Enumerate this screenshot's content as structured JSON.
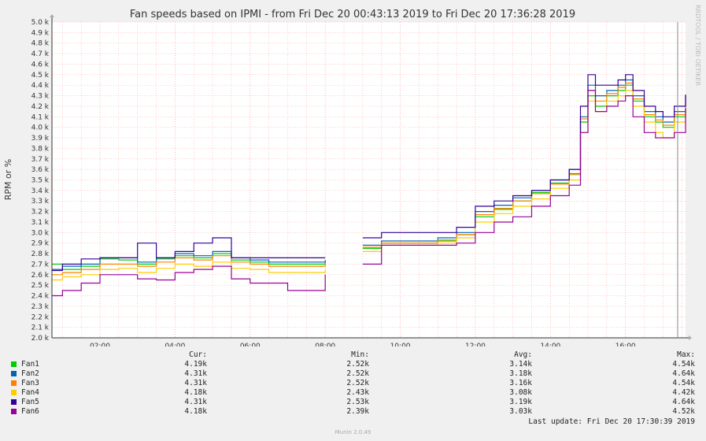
{
  "chart_data": {
    "type": "line",
    "title": "Fan speeds based on IPMI - from Fri Dec 20 00:43:13 2019 to Fri Dec 20 17:36:28 2019",
    "ylabel": "RPM or %",
    "ylim": [
      2000,
      5000
    ],
    "x_range_hours": [
      0.72,
      17.6
    ],
    "x_ticks": [
      "02:00",
      "04:00",
      "06:00",
      "08:00",
      "10:00",
      "12:00",
      "14:00",
      "16:00"
    ],
    "y_ticks": [
      "5.0 k",
      "4.9 k",
      "4.8 k",
      "4.7 k",
      "4.6 k",
      "4.5 k",
      "4.4 k",
      "4.3 k",
      "4.2 k",
      "4.1 k",
      "4.0 k",
      "3.9 k",
      "3.8 k",
      "3.7 k",
      "3.6 k",
      "3.5 k",
      "3.4 k",
      "3.3 k",
      "3.2 k",
      "3.1 k",
      "3.0 k",
      "2.9 k",
      "2.8 k",
      "2.7 k",
      "2.6 k",
      "2.5 k",
      "2.4 k",
      "2.3 k",
      "2.2 k",
      "2.1 k",
      "2.0 k"
    ],
    "grid": true,
    "legend_placement": "bottom",
    "series": [
      {
        "name": "Fan1",
        "color": "#00cc00",
        "cur": "4.19k",
        "min": "2.52k",
        "avg": "3.14k",
        "max": "4.54k",
        "x": [
          0.72,
          1.0,
          1.5,
          2.0,
          2.5,
          3.0,
          3.5,
          4.0,
          4.5,
          5.0,
          5.5,
          6.0,
          6.5,
          7.0,
          7.5,
          8.0,
          8.6,
          9.0,
          9.5,
          10.0,
          10.5,
          11.0,
          11.5,
          12.0,
          12.5,
          13.0,
          13.5,
          14.0,
          14.5,
          14.8,
          15.0,
          15.2,
          15.5,
          15.8,
          16.0,
          16.2,
          16.5,
          16.8,
          17.0,
          17.3,
          17.6
        ],
        "y": [
          2700,
          2650,
          2680,
          2750,
          2740,
          2700,
          2750,
          2780,
          2760,
          2800,
          2740,
          2720,
          2700,
          2700,
          2700,
          2720,
          null,
          2850,
          2900,
          2900,
          2900,
          2920,
          2980,
          3150,
          3220,
          3300,
          3380,
          3470,
          3560,
          4050,
          4300,
          4200,
          4300,
          4350,
          4400,
          4250,
          4100,
          4050,
          4000,
          4100,
          4190
        ]
      },
      {
        "name": "Fan2",
        "color": "#0066b3",
        "cur": "4.31k",
        "min": "2.52k",
        "avg": "3.18k",
        "max": "4.64k",
        "x": [
          0.72,
          1.0,
          1.5,
          2.0,
          2.5,
          3.0,
          3.5,
          4.0,
          4.5,
          5.0,
          5.5,
          6.0,
          6.5,
          7.0,
          7.5,
          8.0,
          8.6,
          9.0,
          9.5,
          10.0,
          10.5,
          11.0,
          11.5,
          12.0,
          12.5,
          13.0,
          13.5,
          14.0,
          14.5,
          14.8,
          15.0,
          15.2,
          15.5,
          15.8,
          16.0,
          16.2,
          16.5,
          16.8,
          17.0,
          17.3,
          17.6
        ],
        "y": [
          2650,
          2680,
          2700,
          2760,
          2760,
          2720,
          2760,
          2800,
          2780,
          2820,
          2760,
          2740,
          2720,
          2720,
          2720,
          2740,
          null,
          2880,
          2920,
          2920,
          2920,
          2950,
          3000,
          3200,
          3260,
          3330,
          3400,
          3500,
          3600,
          4100,
          4400,
          4300,
          4350,
          4400,
          4450,
          4300,
          4150,
          4100,
          4050,
          4150,
          4310
        ]
      },
      {
        "name": "Fan3",
        "color": "#ff8000",
        "cur": "4.31k",
        "min": "2.52k",
        "avg": "3.16k",
        "max": "4.54k",
        "x": [
          0.72,
          1.0,
          1.5,
          2.0,
          2.5,
          3.0,
          3.5,
          4.0,
          4.5,
          5.0,
          5.5,
          6.0,
          6.5,
          7.0,
          7.5,
          8.0,
          8.6,
          9.0,
          9.5,
          10.0,
          10.5,
          11.0,
          11.5,
          12.0,
          12.5,
          13.0,
          13.5,
          14.0,
          14.5,
          14.8,
          15.0,
          15.2,
          15.5,
          15.8,
          16.0,
          16.2,
          16.5,
          16.8,
          17.0,
          17.3,
          17.6
        ],
        "y": [
          2600,
          2620,
          2650,
          2700,
          2700,
          2680,
          2720,
          2760,
          2740,
          2780,
          2720,
          2700,
          2680,
          2680,
          2680,
          2700,
          null,
          2860,
          2900,
          2900,
          2900,
          2930,
          2980,
          3170,
          3230,
          3300,
          3370,
          3460,
          3550,
          4080,
          4350,
          4250,
          4320,
          4380,
          4420,
          4270,
          4120,
          4070,
          4020,
          4120,
          4310
        ]
      },
      {
        "name": "Fan4",
        "color": "#ffcc00",
        "cur": "4.18k",
        "min": "2.43k",
        "avg": "3.08k",
        "max": "4.42k",
        "x": [
          0.72,
          1.0,
          1.5,
          2.0,
          2.5,
          3.0,
          3.5,
          4.0,
          4.5,
          5.0,
          5.5,
          6.0,
          6.5,
          7.0,
          7.5,
          8.0,
          8.6,
          9.0,
          9.5,
          10.0,
          10.5,
          11.0,
          11.5,
          12.0,
          12.5,
          13.0,
          13.5,
          14.0,
          14.5,
          14.8,
          15.0,
          15.2,
          15.5,
          15.8,
          16.0,
          16.2,
          16.5,
          16.8,
          17.0,
          17.3,
          17.6
        ],
        "y": [
          2550,
          2580,
          2600,
          2650,
          2660,
          2620,
          2660,
          2700,
          2680,
          2720,
          2660,
          2650,
          2620,
          2620,
          2620,
          2650,
          null,
          2820,
          2880,
          2880,
          2880,
          2900,
          2950,
          3100,
          3180,
          3250,
          3320,
          3420,
          3500,
          3950,
          4250,
          4150,
          4250,
          4300,
          4350,
          4200,
          4050,
          3950,
          3900,
          4050,
          4180
        ]
      },
      {
        "name": "Fan5",
        "color": "#330099",
        "cur": "4.31k",
        "min": "2.53k",
        "avg": "3.19k",
        "max": "4.64k",
        "x": [
          0.72,
          1.0,
          1.5,
          2.0,
          2.5,
          3.0,
          3.5,
          4.0,
          4.5,
          5.0,
          5.5,
          6.0,
          6.5,
          7.0,
          7.5,
          8.0,
          8.6,
          9.0,
          9.5,
          10.0,
          10.5,
          11.0,
          11.5,
          12.0,
          12.5,
          13.0,
          13.5,
          14.0,
          14.5,
          14.8,
          15.0,
          15.2,
          15.5,
          15.8,
          16.0,
          16.2,
          16.5,
          16.8,
          17.0,
          17.3,
          17.6
        ],
        "y": [
          2640,
          2700,
          2750,
          2760,
          2760,
          2900,
          2760,
          2820,
          2900,
          2950,
          2760,
          2760,
          2760,
          2760,
          2760,
          2760,
          null,
          2950,
          3000,
          3000,
          3000,
          3000,
          3050,
          3250,
          3300,
          3350,
          3400,
          3500,
          3600,
          4200,
          4500,
          4400,
          4400,
          4450,
          4500,
          4350,
          4200,
          4150,
          4100,
          4200,
          4310
        ]
      },
      {
        "name": "Fan6",
        "color": "#990099",
        "cur": "4.18k",
        "min": "2.39k",
        "avg": "3.03k",
        "max": "4.52k",
        "x": [
          0.72,
          1.0,
          1.5,
          2.0,
          2.5,
          3.0,
          3.5,
          4.0,
          4.5,
          5.0,
          5.5,
          6.0,
          6.5,
          7.0,
          7.5,
          8.0,
          8.6,
          9.0,
          9.5,
          10.0,
          10.5,
          11.0,
          11.5,
          12.0,
          12.5,
          13.0,
          13.5,
          14.0,
          14.5,
          14.8,
          15.0,
          15.2,
          15.5,
          15.8,
          16.0,
          16.2,
          16.5,
          16.8,
          17.0,
          17.3,
          17.6
        ],
        "y": [
          2400,
          2450,
          2520,
          2600,
          2600,
          2560,
          2550,
          2620,
          2650,
          2680,
          2560,
          2520,
          2520,
          2450,
          2450,
          2600,
          null,
          2700,
          2880,
          2880,
          2880,
          2880,
          2900,
          3000,
          3100,
          3150,
          3250,
          3350,
          3450,
          3950,
          4350,
          4150,
          4200,
          4250,
          4300,
          4100,
          3950,
          3900,
          3900,
          3950,
          4180
        ]
      }
    ]
  },
  "legend": {
    "headers": {
      "cur": "Cur:",
      "min": "Min:",
      "avg": "Avg:",
      "max": "Max:"
    }
  },
  "side_text": "RRDTOOL / TOBI OETIKER",
  "last_update": "Last update: Fri Dec 20 17:30:39 2019",
  "version": "Munin 2.0.49",
  "colors": {
    "background": "#f0f0f0",
    "canvas": "#ffffff",
    "grid": "#ff9999",
    "axis": "#333333"
  }
}
